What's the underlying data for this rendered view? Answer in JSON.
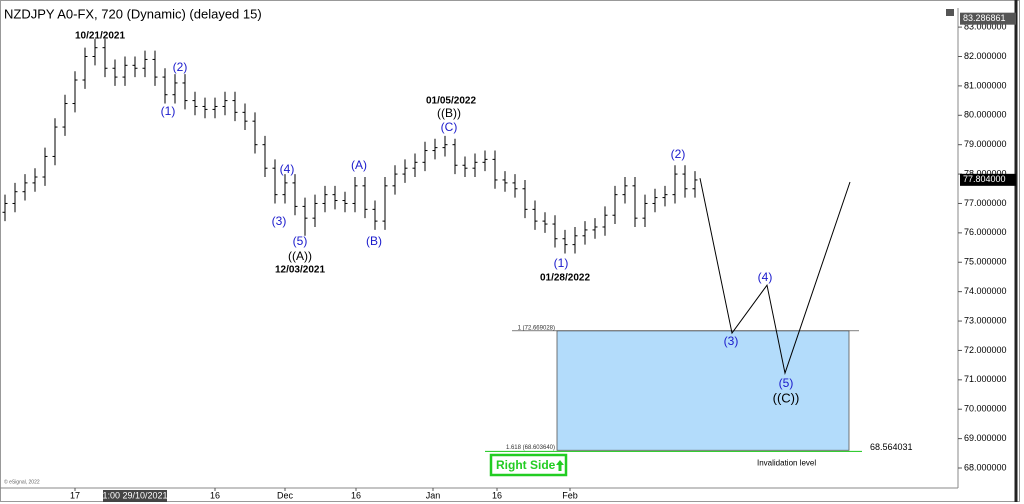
{
  "chart_data": {
    "type": "ohlc",
    "title": "NZDJPY A0-FX, 720 (Dynamic) (delayed 15)",
    "color": "#000000",
    "open": [
      76.7,
      77.0,
      77.4,
      77.7,
      77.9,
      78.6,
      79.6,
      80.4,
      81.2,
      82.0,
      82.3,
      81.6,
      81.3,
      81.7,
      81.6,
      81.9,
      81.3,
      80.7,
      81.1,
      80.5,
      80.3,
      80.2,
      80.3,
      80.5,
      80.1,
      79.8,
      79.0,
      78.2,
      77.3,
      77.7,
      76.9,
      76.5,
      77.0,
      77.3,
      77.1,
      77.0,
      77.6,
      76.8,
      76.4,
      77.6,
      78.0,
      78.2,
      78.4,
      78.8,
      78.9,
      79.0,
      78.3,
      78.2,
      78.4,
      78.5,
      77.8,
      77.7,
      77.5,
      76.8,
      76.4,
      76.3,
      75.8,
      75.6,
      75.9,
      76.1,
      76.2,
      76.6,
      77.3,
      77.6,
      76.5,
      77.0,
      77.2,
      77.3,
      78.0,
      77.5
    ],
    "high": [
      77.3,
      77.7,
      78.0,
      78.2,
      78.9,
      79.9,
      80.7,
      81.5,
      82.3,
      82.6,
      82.6,
      81.9,
      82.0,
      82.0,
      82.2,
      82.2,
      81.6,
      81.4,
      81.4,
      80.8,
      80.6,
      80.6,
      80.8,
      80.8,
      80.4,
      80.1,
      79.3,
      78.5,
      78.0,
      78.0,
      77.2,
      77.3,
      77.6,
      77.6,
      77.4,
      77.9,
      77.9,
      77.1,
      77.9,
      78.3,
      78.5,
      78.7,
      79.1,
      79.2,
      79.3,
      79.2,
      78.6,
      78.7,
      78.8,
      78.8,
      78.1,
      78.0,
      77.8,
      77.1,
      76.7,
      76.6,
      76.1,
      76.2,
      76.4,
      76.5,
      76.9,
      77.6,
      77.9,
      77.9,
      77.3,
      77.5,
      77.6,
      78.3,
      78.3,
      78.1
    ],
    "low": [
      76.4,
      76.7,
      77.1,
      77.4,
      77.6,
      78.3,
      79.3,
      80.1,
      80.9,
      81.7,
      81.3,
      81.0,
      81.0,
      81.3,
      81.3,
      81.0,
      80.4,
      80.4,
      80.2,
      80.0,
      79.9,
      79.9,
      80.0,
      79.8,
      79.5,
      78.7,
      77.9,
      77.0,
      77.0,
      76.6,
      75.9,
      76.2,
      76.7,
      76.8,
      76.7,
      76.7,
      76.5,
      76.1,
      76.1,
      77.3,
      77.7,
      77.9,
      78.1,
      78.5,
      78.6,
      78.0,
      77.9,
      77.9,
      78.1,
      77.5,
      77.4,
      77.2,
      76.5,
      76.1,
      76.0,
      75.5,
      75.3,
      75.3,
      75.6,
      75.8,
      75.9,
      76.3,
      77.0,
      76.2,
      76.2,
      76.7,
      76.9,
      77.0,
      77.2,
      77.2
    ],
    "close": [
      77.0,
      77.4,
      77.7,
      77.9,
      78.6,
      79.6,
      80.4,
      81.2,
      82.0,
      82.3,
      81.6,
      81.3,
      81.7,
      81.6,
      81.9,
      81.3,
      80.7,
      81.1,
      80.5,
      80.3,
      80.2,
      80.3,
      80.5,
      80.1,
      79.8,
      79.0,
      78.2,
      77.3,
      77.7,
      76.9,
      76.5,
      77.0,
      77.3,
      77.1,
      77.0,
      77.6,
      76.8,
      76.4,
      77.6,
      78.0,
      78.2,
      78.4,
      78.8,
      78.9,
      79.0,
      78.3,
      78.2,
      78.4,
      78.5,
      77.8,
      77.7,
      77.5,
      76.8,
      76.4,
      76.3,
      75.8,
      75.6,
      75.9,
      76.1,
      76.2,
      76.6,
      77.3,
      77.6,
      76.5,
      77.0,
      77.2,
      77.3,
      78.0,
      77.5,
      77.8
    ],
    "xlim": [
      -0.5,
      95.3
    ],
    "ylim": [
      67.32,
      83.65
    ],
    "xticks": [
      {
        "value": 7,
        "label": "17"
      },
      {
        "value": 21,
        "label": "16"
      },
      {
        "value": 28,
        "label": "Dec"
      },
      {
        "value": 35.1,
        "label": "16"
      },
      {
        "value": 42.8,
        "label": "Jan"
      },
      {
        "value": 49.2,
        "label": "16"
      },
      {
        "value": 56.5,
        "label": "Feb"
      }
    ],
    "cursor_label": {
      "value": 13,
      "label": "1:00 29/10/2021"
    },
    "yticks": [
      {
        "value": 68,
        "label": "68.000000"
      },
      {
        "value": 69,
        "label": "69.000000"
      },
      {
        "value": 70,
        "label": "70.000000"
      },
      {
        "value": 71,
        "label": "71.000000"
      },
      {
        "value": 72,
        "label": "72.000000"
      },
      {
        "value": 73,
        "label": "73.000000"
      },
      {
        "value": 74,
        "label": "74.000000"
      },
      {
        "value": 75,
        "label": "75.000000"
      },
      {
        "value": 76,
        "label": "76.000000"
      },
      {
        "value": 77,
        "label": "77.000000"
      },
      {
        "value": 78,
        "label": "78.000000"
      },
      {
        "value": 79,
        "label": "79.000000"
      },
      {
        "value": 80,
        "label": "80.000000"
      },
      {
        "value": 81,
        "label": "81.000000"
      },
      {
        "value": 82,
        "label": "82.000000"
      },
      {
        "value": 83,
        "label": "83.000000"
      }
    ],
    "price_markers": [
      {
        "value": 77.804,
        "label": "77.804000"
      },
      {
        "value": 83.286861,
        "label": "83.286861"
      }
    ],
    "projection": {
      "color": "#000000",
      "x": [
        69.5,
        72.7,
        76.2,
        78.0,
        84.5
      ],
      "values": [
        77.86,
        72.59,
        74.22,
        71.23,
        77.73
      ]
    },
    "target_box": {
      "color": "#b3dcfb",
      "x": [
        55.2,
        84.4
      ],
      "top": 72.669028,
      "bottom": 68.60364,
      "top_label": "1 (72.669028)",
      "bottom_label": "1.618 (68.603640)"
    },
    "invalidation": {
      "color": "#33cc33",
      "value": 68.564031,
      "label": "68.564031",
      "x": [
        48,
        85.7
      ],
      "text": "Invalidation level"
    },
    "annotations": [
      "10/21/2021",
      "(2)",
      "(1)",
      "(4)",
      "(3)",
      "(5)",
      "((A))",
      "12/03/2021",
      "(A)",
      "(B)",
      "01/05/2022",
      "((B))",
      "(C)",
      "(2)",
      "(1)",
      "01/28/2022",
      "(3)",
      "(4)",
      "(5)",
      "((C))"
    ],
    "button": "Right Side",
    "copyright": "© eSignal, 2022"
  }
}
